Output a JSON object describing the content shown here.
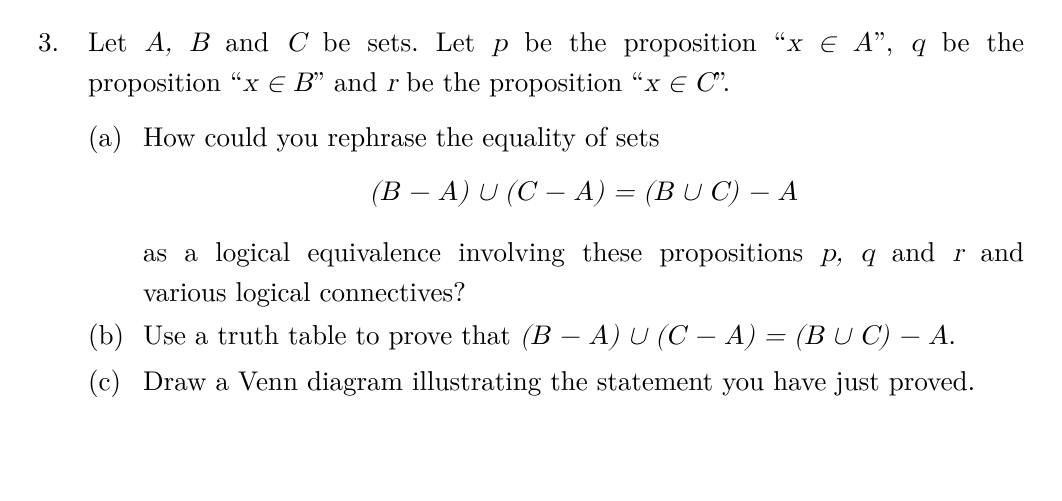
{
  "number": "3.",
  "intro_parts": {
    "s1": "Let ",
    "ABC": "A, B",
    "and1": " and ",
    "C": "C",
    "s2": " be sets.  Let ",
    "p": "p",
    "s3": " be the proposition ",
    "q1a": "“",
    "m1": "x ∈ A",
    "q1b": "”",
    "s4": ", ",
    "q": "q",
    "s5": " be the proposition ",
    "q2a": "“",
    "m2": "x ∈ B",
    "q2b": "”",
    "s6": " and ",
    "r": "r",
    "s7": " be the proposition ",
    "q3a": "“",
    "m3": "x ∈ C",
    "q3b": "”",
    "s8": "."
  },
  "a": {
    "label": "(a)",
    "lead": "How could you rephrase the equality of sets",
    "eq": "(B − A) ∪ (C − A) = (B ∪ C) − A",
    "tail1": "as a logical equivalence involving these propositions ",
    "pqr1": "p, q",
    "and": " and ",
    "rr": "r",
    "tail2": " and various logical connectives?"
  },
  "b": {
    "label": "(b)",
    "t1": "Use a truth table to prove that ",
    "eq": "(B − A) ∪ (C − A) = (B ∪ C) − A",
    "t2": "."
  },
  "c": {
    "label": "(c)",
    "text": "Draw a Venn diagram illustrating the statement you have just proved."
  }
}
